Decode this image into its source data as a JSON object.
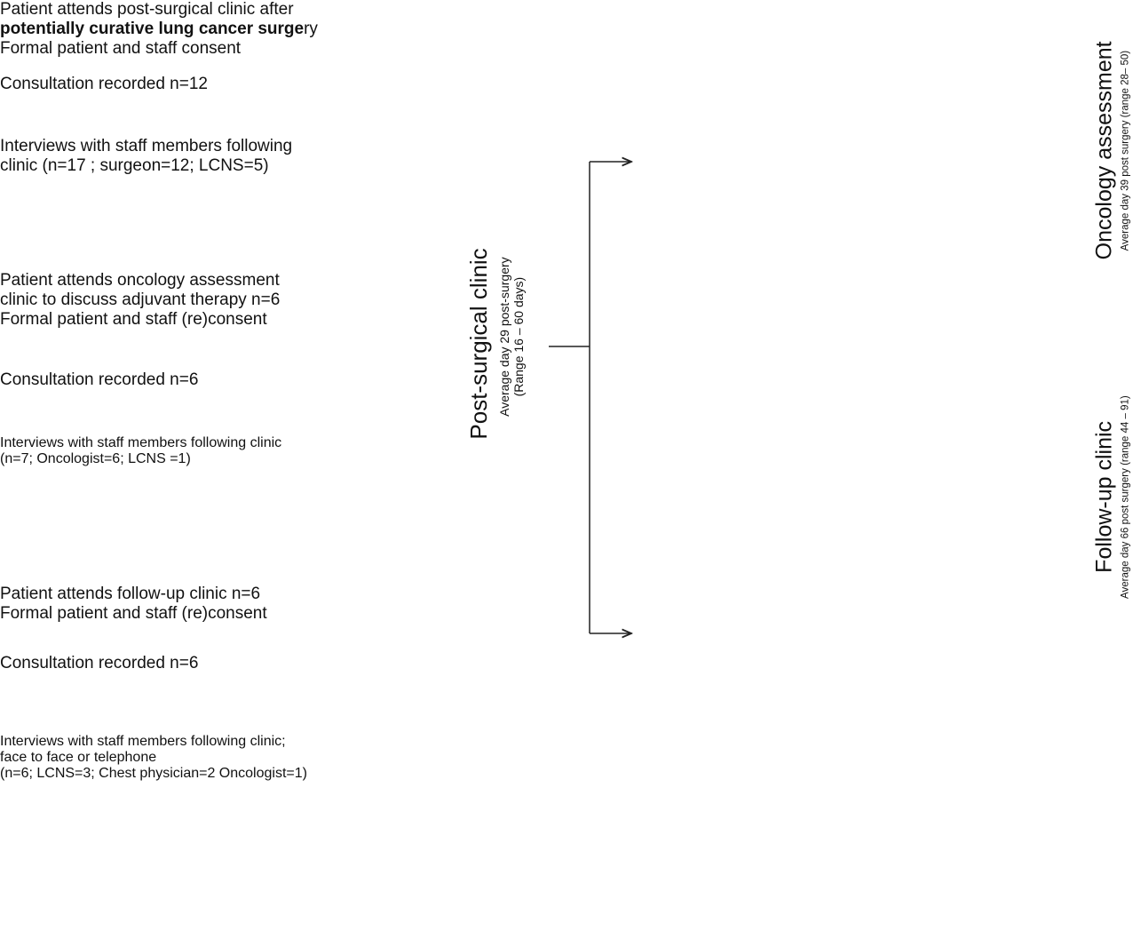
{
  "groups": [
    {
      "title": "Post-surgical clinic",
      "subtitle": [
        "Average day 29 post-surgery",
        "(Range 16 – 60 days)"
      ],
      "boxes": [
        {
          "lines": [
            "Patient attends post-surgical clinic after",
            {
              "bold": "potentially curative lung cancer surge",
              "regular": "ry"
            },
            "Formal patient and staff consent"
          ]
        },
        {
          "lines": [
            "Consultation recorded n=12"
          ]
        },
        {
          "lines": [
            "Interviews with staff members following",
            "clinic (n=17 ; surgeon=12; LCNS=5)"
          ]
        }
      ]
    },
    {
      "title": "Oncology assessment",
      "subtitle": [
        "Average day 39 post surgery (range 28– 50)"
      ],
      "boxes": [
        {
          "lines": [
            "Patient attends oncology assessment",
            "clinic to discuss adjuvant therapy n=6",
            "Formal patient and staff (re)consent"
          ]
        },
        {
          "lines": [
            "Consultation recorded n=6"
          ]
        },
        {
          "lines": [
            "Interviews with staff members following clinic",
            "(n=7; Oncologist=6; LCNS =1)"
          ]
        }
      ]
    },
    {
      "title": "Follow-up clinic",
      "subtitle": [
        "Average day 66 post surgery (range 44 – 91)"
      ],
      "boxes": [
        {
          "lines": [
            "Patient attends follow-up clinic n=6",
            "Formal patient and staff (re)consent"
          ]
        },
        {
          "lines": [
            "Consultation recorded n=6"
          ]
        },
        {
          "lines": [
            "Interviews with staff members following clinic;",
            "face to face or telephone",
            "(n=6; LCNS=3; Chest physician=2 Oncologist=1)"
          ]
        }
      ]
    }
  ]
}
